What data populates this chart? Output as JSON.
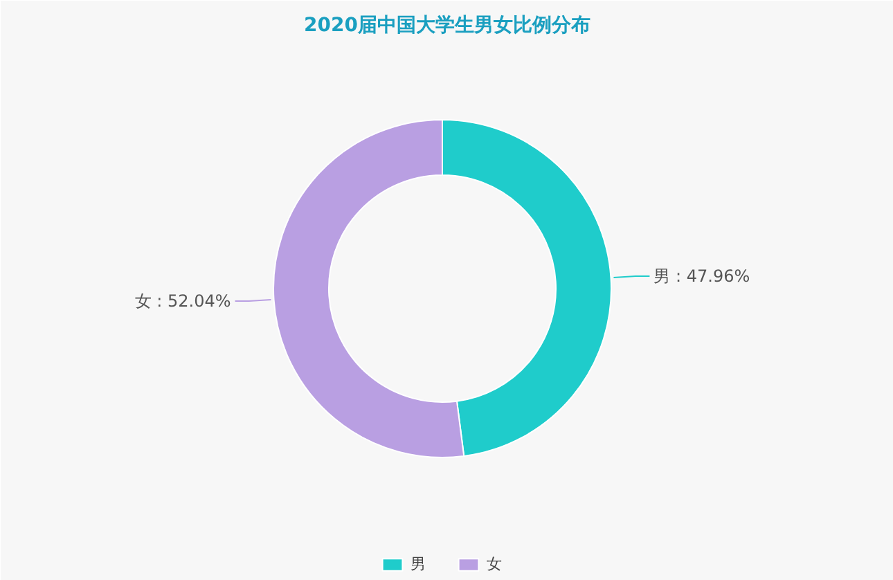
{
  "chart_data": {
    "type": "donut",
    "title": "2020届中国大学生男女比例分布",
    "categories": [
      "男",
      "女"
    ],
    "values": [
      47.96,
      52.04
    ],
    "value_labels": [
      "男 : 47.96%",
      "女 : 52.04%"
    ],
    "colors": [
      "#1fcccb",
      "#b99fe2"
    ],
    "legend": "bottom"
  }
}
